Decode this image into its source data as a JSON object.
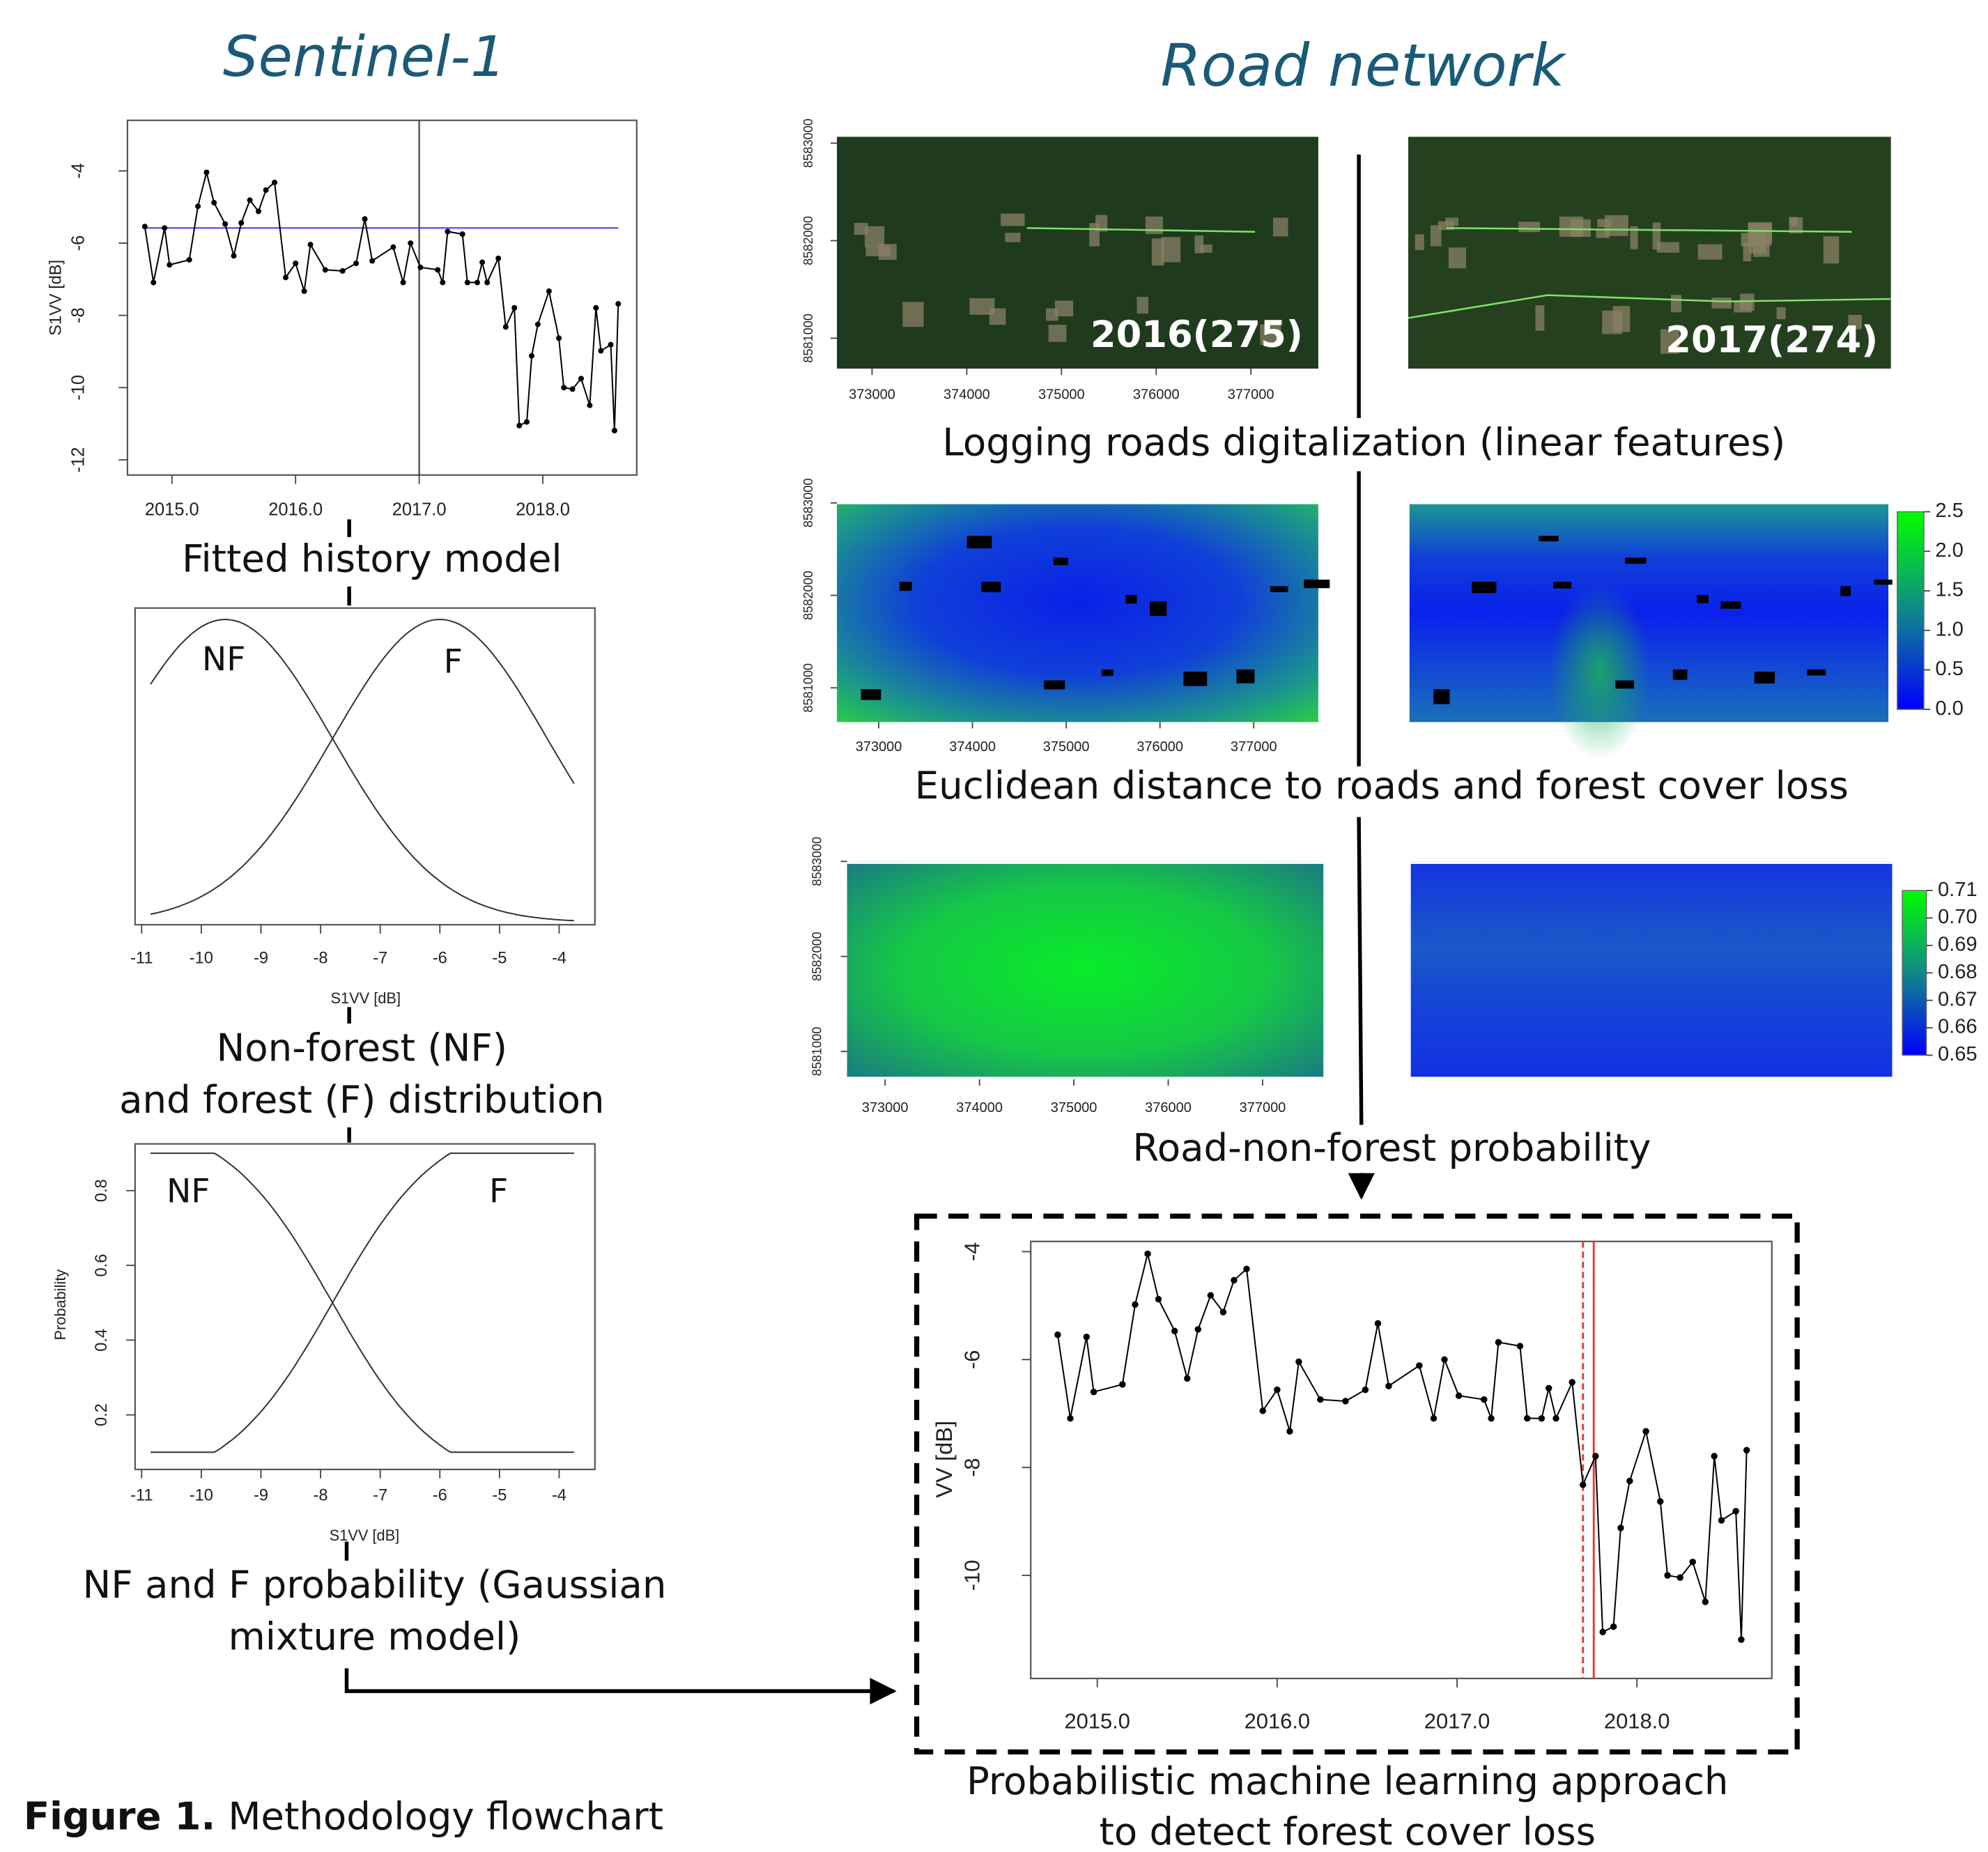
{
  "titles": {
    "left": "Sentinel-1",
    "right": "Road network"
  },
  "caption": {
    "label": "Figure 1.",
    "text": "Methodology flowchart"
  },
  "chart_data": [
    {
      "type": "line",
      "ylabel": "S1VV [dB]",
      "caption": [
        "Fitted history model"
      ],
      "color": "#000000",
      "level_color": "#5a5af0",
      "x": [
        2014.78,
        2014.85,
        2014.94,
        2014.98,
        2015.14,
        2015.21,
        2015.28,
        2015.34,
        2015.43,
        2015.5,
        2015.56,
        2015.63,
        2015.7,
        2015.76,
        2015.83,
        2015.92,
        2016.0,
        2016.07,
        2016.12,
        2016.24,
        2016.38,
        2016.49,
        2016.56,
        2016.62,
        2016.79,
        2016.87,
        2016.93,
        2017.01,
        2017.15,
        2017.19,
        2017.23,
        2017.35,
        2017.39,
        2017.47,
        2017.51,
        2017.55,
        2017.64,
        2017.7,
        2017.77,
        2017.81,
        2017.87,
        2017.91,
        2017.96,
        2018.05,
        2018.13,
        2018.17,
        2018.24,
        2018.31,
        2018.38,
        2018.43,
        2018.47,
        2018.55,
        2018.58,
        2018.61
      ],
      "values": [
        -5.54,
        -7.09,
        -5.58,
        -6.6,
        -6.46,
        -4.98,
        -4.04,
        -4.88,
        -5.47,
        -6.35,
        -5.44,
        -4.81,
        -5.12,
        -4.53,
        -4.32,
        -6.95,
        -6.56,
        -7.33,
        -6.04,
        -6.74,
        -6.77,
        -6.56,
        -5.33,
        -6.49,
        -6.11,
        -7.09,
        -6.0,
        -6.67,
        -6.74,
        -7.09,
        -5.68,
        -5.75,
        -7.09,
        -7.09,
        -6.53,
        -7.09,
        -6.42,
        -8.32,
        -7.79,
        -11.05,
        -10.95,
        -9.12,
        -8.25,
        -7.33,
        -8.63,
        -10.0,
        -10.04,
        -9.75,
        -10.49,
        -7.79,
        -8.98,
        -8.81,
        -11.19,
        -7.68
      ],
      "level": -5.58,
      "breakpoint": 2017.0,
      "xlim": [
        2014.64,
        2018.76
      ],
      "ylim": [
        -12.42,
        -2.6
      ],
      "xticks": [
        {
          "value": 2015,
          "label": "2015.0"
        },
        {
          "value": 2016,
          "label": "2016.0"
        },
        {
          "value": 2017,
          "label": "2017.0"
        },
        {
          "value": 2018,
          "label": "2018.0"
        }
      ],
      "yticks": [
        -4,
        -6,
        -8,
        -10,
        -12
      ]
    },
    {
      "type": "density",
      "xlabel": "S1VV [dB]",
      "caption": [
        "Non-forest (NF)",
        "and forest (F) distribution"
      ],
      "components": [
        {
          "name": "NF",
          "mean": -9.6,
          "sd": 1.8
        },
        {
          "name": "F",
          "mean": -6.0,
          "sd": 1.8
        }
      ],
      "xlim": [
        -11.11,
        -3.4
      ],
      "xticks": [
        -11,
        -10,
        -9,
        -8,
        -7,
        -6,
        -5,
        -4
      ]
    },
    {
      "type": "probability",
      "xlabel": "S1VV [dB]",
      "ylabel": "Probability",
      "caption": [
        "NF and F probability (Gaussian",
        "mixture model)"
      ],
      "components": [
        {
          "name": "NF",
          "mean": -9.6,
          "sd": 1.8
        },
        {
          "name": "F",
          "mean": -6.0,
          "sd": 1.8
        }
      ],
      "clamp": [
        0.1,
        0.9
      ],
      "xlim": [
        -11.11,
        -3.4
      ],
      "ylim": [
        0.054,
        0.925
      ],
      "xticks": [
        -11,
        -10,
        -9,
        -8,
        -7,
        -6,
        -5,
        -4
      ],
      "yticks": [
        0.2,
        0.4,
        0.6,
        0.8
      ]
    },
    {
      "type": "line",
      "ylabel": "VV [dB]",
      "caption": [
        "Probabilistic machine learning  approach",
        "to detect forest cover loss"
      ],
      "color": "#000000",
      "x": [
        2014.78,
        2014.85,
        2014.94,
        2014.98,
        2015.14,
        2015.21,
        2015.28,
        2015.34,
        2015.43,
        2015.5,
        2015.56,
        2015.63,
        2015.7,
        2015.76,
        2015.83,
        2015.92,
        2016.0,
        2016.07,
        2016.12,
        2016.24,
        2016.38,
        2016.49,
        2016.56,
        2016.62,
        2016.79,
        2016.87,
        2016.93,
        2017.01,
        2017.15,
        2017.19,
        2017.23,
        2017.35,
        2017.39,
        2017.47,
        2017.51,
        2017.55,
        2017.64,
        2017.7,
        2017.77,
        2017.81,
        2017.87,
        2017.91,
        2017.96,
        2018.05,
        2018.13,
        2018.17,
        2018.24,
        2018.31,
        2018.38,
        2018.43,
        2018.47,
        2018.55,
        2018.58,
        2018.61
      ],
      "values": [
        -5.54,
        -7.09,
        -5.58,
        -6.6,
        -6.46,
        -4.98,
        -4.04,
        -4.88,
        -5.47,
        -6.35,
        -5.44,
        -4.81,
        -5.12,
        -4.53,
        -4.32,
        -6.95,
        -6.56,
        -7.33,
        -6.04,
        -6.74,
        -6.77,
        -6.56,
        -5.33,
        -6.49,
        -6.11,
        -7.09,
        -6.0,
        -6.67,
        -6.74,
        -7.09,
        -5.68,
        -5.75,
        -7.09,
        -7.09,
        -6.53,
        -7.09,
        -6.42,
        -8.32,
        -7.79,
        -11.05,
        -10.95,
        -9.12,
        -8.25,
        -7.33,
        -8.63,
        -10.0,
        -10.04,
        -9.75,
        -10.49,
        -7.79,
        -8.98,
        -8.81,
        -11.19,
        -7.68
      ],
      "change_lines": [
        {
          "x": 2017.7,
          "dashed": true
        },
        {
          "x": 2017.76,
          "dashed": false
        }
      ],
      "change_color": "#e03c3c",
      "xlim": [
        2014.63,
        2018.75
      ],
      "ylim": [
        -11.91,
        -3.81
      ],
      "xticks": [
        {
          "value": 2015,
          "label": "2015.0"
        },
        {
          "value": 2016,
          "label": "2016.0"
        },
        {
          "value": 2017,
          "label": "2017.0"
        },
        {
          "value": 2018,
          "label": "2018.0"
        }
      ],
      "yticks": [
        -4,
        -6,
        -8,
        -10
      ]
    }
  ],
  "maps": {
    "rows": [
      {
        "caption": "Logging roads digitalization (linear features)",
        "labels": [
          "2016(275)",
          "2017(274)"
        ],
        "xlim": [
          372629,
          377712
        ],
        "ylim": [
          8580688,
          8583065
        ],
        "xticks": [
          373000,
          374000,
          375000,
          376000,
          377000
        ],
        "yticks": [
          8581000,
          8582000,
          8583000
        ]
      },
      {
        "caption": "Euclidean distance to roads and forest cover loss",
        "xlim": [
          372554,
          377689
        ],
        "ylim": [
          8580630,
          8583000
        ],
        "xticks": [
          373000,
          374000,
          375000,
          376000,
          377000
        ],
        "yticks": [
          8581000,
          8582000,
          8583000
        ],
        "colorbar": {
          "lim": [
            0,
            2.5
          ],
          "ticks": [
            {
              "value": 0,
              "label": "0.0"
            },
            0.5,
            {
              "value": 1,
              "label": "1.0"
            },
            1.5,
            {
              "value": 2,
              "label": "2.0"
            },
            2.5
          ]
        }
      },
      {
        "caption": "Road-non-forest probability",
        "xlim": [
          372597,
          377644
        ],
        "ylim": [
          8580707,
          8583000
        ],
        "xticks": [
          373000,
          374000,
          375000,
          376000,
          377000
        ],
        "yticks": [
          8581000,
          8582000,
          8583000
        ],
        "colorbar": {
          "lim": [
            0.65,
            0.71
          ],
          "ticks": [
            0.65,
            0.66,
            0.67,
            0.68,
            0.69,
            {
              "value": 0.7,
              "label": "0.70"
            },
            0.71
          ]
        }
      }
    ]
  }
}
